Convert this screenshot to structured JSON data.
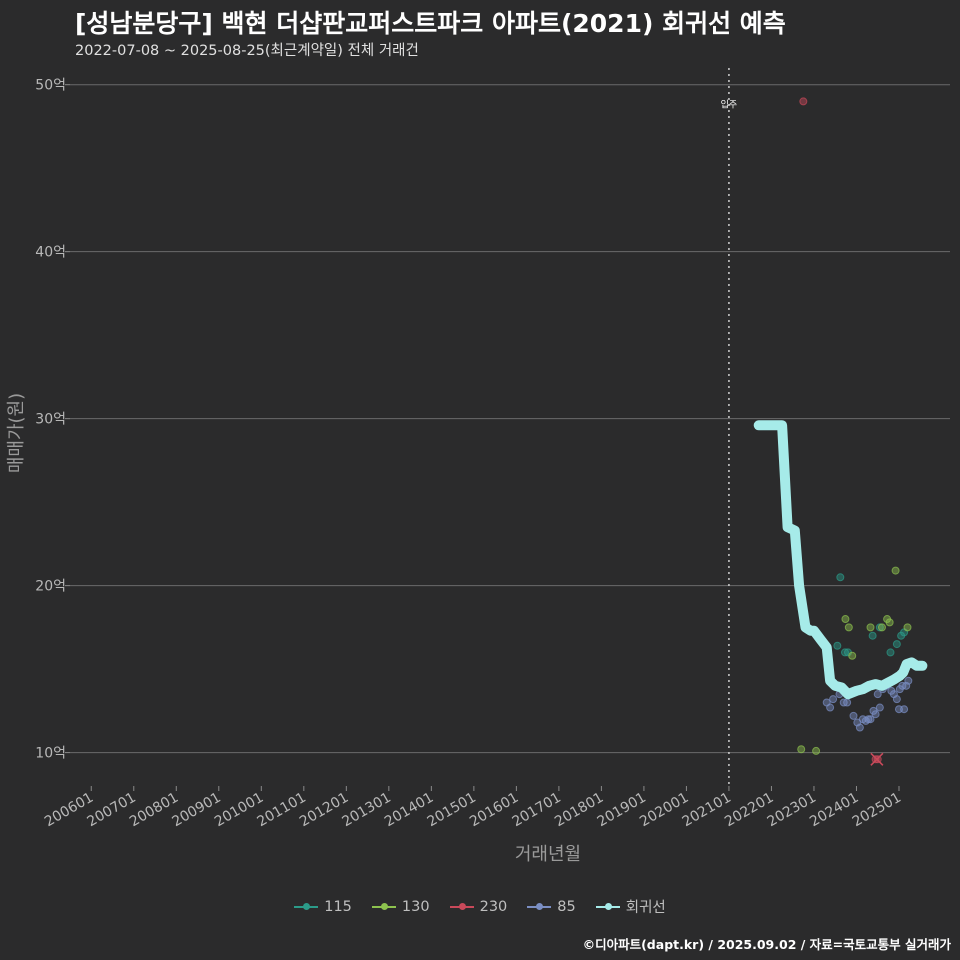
{
  "title": "[성남분당구] 백현 더샵판교퍼스트파크 아파트(2021) 회귀선 예측",
  "subtitle": "2022-07-08 ~ 2025-08-25(최근계약일) 전체 거래건",
  "caption": "©디아파트(dapt.kr) / 2025.09.02 / 자료=국토교통부 실거래가",
  "chart_data": {
    "type": "scatter",
    "title": "[성남분당구] 백현 더샵판교퍼스트파크 아파트(2021) 회귀선 예측",
    "xlabel": "거래년월",
    "ylabel": "매매가(원)",
    "x_range": [
      2005.5,
      2026.2
    ],
    "ylim": [
      8.0,
      51.0
    ],
    "y_ticks": [
      10,
      20,
      30,
      40,
      50
    ],
    "y_tick_labels": [
      "10억",
      "20억",
      "30억",
      "40억",
      "50억"
    ],
    "x_tick_labels": [
      "200601",
      "200701",
      "200801",
      "200901",
      "201001",
      "201101",
      "201201",
      "201301",
      "201401",
      "201501",
      "201601",
      "201701",
      "201801",
      "201901",
      "202001",
      "202101",
      "202201",
      "202301",
      "202401",
      "202501"
    ],
    "grid": true,
    "vline": {
      "x": 2021.0,
      "label": "입주"
    },
    "legend_position": "bottom",
    "series": [
      {
        "name": "115",
        "color": "#2b9b89",
        "points": [
          [
            2023.55,
            16.4
          ],
          [
            2023.62,
            20.5
          ],
          [
            2023.73,
            16.0
          ],
          [
            2023.8,
            16.0
          ],
          [
            2024.38,
            17.0
          ],
          [
            2024.55,
            17.5
          ],
          [
            2024.8,
            16.0
          ],
          [
            2024.95,
            16.5
          ],
          [
            2025.05,
            17.0
          ],
          [
            2025.12,
            17.2
          ]
        ]
      },
      {
        "name": "130",
        "color": "#8dc24e",
        "points": [
          [
            2022.7,
            10.2
          ],
          [
            2023.05,
            10.1
          ],
          [
            2023.74,
            18.0
          ],
          [
            2023.82,
            17.5
          ],
          [
            2023.9,
            15.8
          ],
          [
            2024.33,
            17.5
          ],
          [
            2024.6,
            17.5
          ],
          [
            2024.72,
            18.0
          ],
          [
            2024.78,
            17.8
          ],
          [
            2024.92,
            20.9
          ],
          [
            2025.2,
            17.5
          ]
        ]
      },
      {
        "name": "230",
        "color": "#c9495a",
        "points": [
          [
            2022.75,
            49.0
          ],
          [
            2024.45,
            9.6
          ],
          [
            2024.5,
            9.6
          ]
        ]
      },
      {
        "name": "85",
        "color": "#7b8fc4",
        "points": [
          [
            2023.3,
            13.0
          ],
          [
            2023.38,
            12.7
          ],
          [
            2023.45,
            13.2
          ],
          [
            2023.6,
            13.5
          ],
          [
            2023.7,
            13.0
          ],
          [
            2023.78,
            13.0
          ],
          [
            2023.93,
            12.2
          ],
          [
            2024.02,
            11.8
          ],
          [
            2024.08,
            11.5
          ],
          [
            2024.15,
            12.0
          ],
          [
            2024.22,
            11.9
          ],
          [
            2024.28,
            12.0
          ],
          [
            2024.33,
            12.0
          ],
          [
            2024.4,
            12.5
          ],
          [
            2024.45,
            12.3
          ],
          [
            2024.5,
            13.5
          ],
          [
            2024.55,
            12.7
          ],
          [
            2024.62,
            13.8
          ],
          [
            2024.7,
            14.0
          ],
          [
            2024.82,
            13.7
          ],
          [
            2024.88,
            13.5
          ],
          [
            2024.95,
            13.2
          ],
          [
            2025.0,
            12.6
          ],
          [
            2025.02,
            13.8
          ],
          [
            2025.08,
            14.0
          ],
          [
            2025.12,
            12.6
          ],
          [
            2025.17,
            14.0
          ],
          [
            2025.22,
            14.3
          ]
        ]
      }
    ],
    "regression": {
      "name": "회귀선",
      "color": "#a6ebe9",
      "points": [
        [
          2021.7,
          29.6
        ],
        [
          2022.15,
          29.6
        ],
        [
          2022.25,
          29.6
        ],
        [
          2022.38,
          23.5
        ],
        [
          2022.55,
          23.3
        ],
        [
          2022.65,
          20.0
        ],
        [
          2022.8,
          17.5
        ],
        [
          2022.92,
          17.3
        ],
        [
          2023.0,
          17.3
        ],
        [
          2023.15,
          16.8
        ],
        [
          2023.3,
          16.3
        ],
        [
          2023.38,
          14.3
        ],
        [
          2023.5,
          14.0
        ],
        [
          2023.65,
          13.9
        ],
        [
          2023.8,
          13.5
        ],
        [
          2024.0,
          13.7
        ],
        [
          2024.15,
          13.8
        ],
        [
          2024.3,
          14.0
        ],
        [
          2024.45,
          14.1
        ],
        [
          2024.6,
          14.0
        ],
        [
          2024.75,
          14.2
        ],
        [
          2024.9,
          14.4
        ],
        [
          2025.02,
          14.6
        ],
        [
          2025.1,
          14.8
        ],
        [
          2025.18,
          15.3
        ],
        [
          2025.3,
          15.4
        ],
        [
          2025.42,
          15.2
        ],
        [
          2025.55,
          15.2
        ]
      ]
    }
  }
}
